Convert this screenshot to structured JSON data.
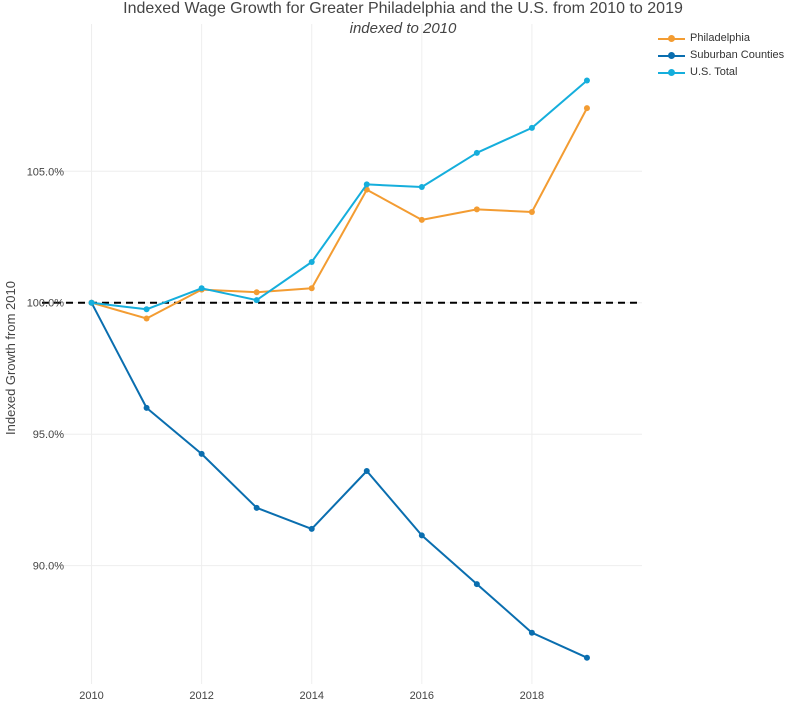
{
  "chart_data": {
    "type": "line",
    "title": "Indexed Wage Growth for Greater Philadelphia and the U.S. from 2010 to 2019",
    "subtitle": "indexed to 2010",
    "xlabel": "",
    "ylabel": "Indexed Growth from 2010",
    "x": [
      2010,
      2011,
      2012,
      2013,
      2014,
      2015,
      2016,
      2017,
      2018,
      2019
    ],
    "xticks": [
      2010,
      2012,
      2014,
      2016,
      2018
    ],
    "xtick_labels": [
      "2010",
      "2012",
      "2014",
      "2016",
      "2018"
    ],
    "yticks": [
      90,
      95,
      100,
      105
    ],
    "ytick_labels": [
      "90.0%",
      "95.0%",
      "100.0%",
      "105.0%"
    ],
    "xlim": [
      2009.1,
      2020.0
    ],
    "ylim": [
      85.5,
      110.6
    ],
    "reference_line": {
      "y": 100,
      "style": "dashed",
      "color": "#000000"
    },
    "grid": true,
    "legend_position": "top-right",
    "series": [
      {
        "name": "Philadelphia",
        "color": "#F39C32",
        "values": [
          100.0,
          99.4,
          100.5,
          100.4,
          100.55,
          104.3,
          103.15,
          103.55,
          103.45,
          107.4
        ]
      },
      {
        "name": "Suburban Counties",
        "color": "#0A6EAF",
        "values": [
          100.0,
          96.0,
          94.25,
          92.2,
          91.4,
          93.6,
          91.15,
          89.3,
          87.45,
          86.5
        ]
      },
      {
        "name": "U.S. Total",
        "color": "#15AEDC",
        "values": [
          100.0,
          99.75,
          100.55,
          100.1,
          101.55,
          104.5,
          104.4,
          105.7,
          106.65,
          108.45
        ]
      }
    ]
  }
}
